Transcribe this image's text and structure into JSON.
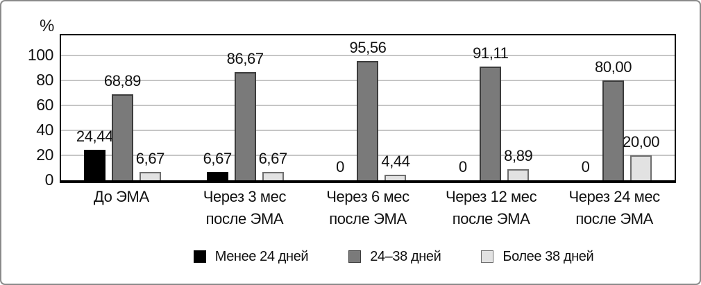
{
  "chart_data": {
    "type": "bar",
    "title": "",
    "xlabel": "",
    "ylabel": "%",
    "ylim": [
      0,
      116
    ],
    "yticks": [
      0,
      20,
      40,
      60,
      80,
      100
    ],
    "grid": true,
    "legend_position": "bottom",
    "categories": [
      "До ЭМА",
      "Через 3 мес после ЭМА",
      "Через 6 мес после ЭМА",
      "Через 12 мес после ЭМА",
      "Через 24 мес после ЭМА"
    ],
    "category_lines": [
      [
        "До ЭМА"
      ],
      [
        "Через 3 мес",
        "после ЭМА"
      ],
      [
        "Через 6 мес",
        "после ЭМА"
      ],
      [
        "Через 12 мес",
        "после ЭМА"
      ],
      [
        "Через 24 мес",
        "после ЭМА"
      ]
    ],
    "series": [
      {
        "name": "Менее 24 дней",
        "color": "#000000",
        "border_color": "#000000",
        "values": [
          24.44,
          6.67,
          0,
          0,
          0
        ],
        "value_labels": [
          "24,44",
          "6,67",
          "0",
          "0",
          "0"
        ]
      },
      {
        "name": "24–38 дней",
        "color": "#7a7a7a",
        "border_color": "#3c3c3c",
        "values": [
          68.89,
          86.67,
          95.56,
          91.11,
          80.0
        ],
        "value_labels": [
          "68,89",
          "86,67",
          "95,56",
          "91,11",
          "80,00"
        ]
      },
      {
        "name": "Более 38 дней",
        "color": "#e2e2e2",
        "border_color": "#6e6e6e",
        "values": [
          6.67,
          6.67,
          4.44,
          8.89,
          20.0
        ],
        "value_labels": [
          "6,67",
          "6,67",
          "4,44",
          "8,89",
          "20,00"
        ]
      }
    ],
    "colors": {
      "gridline": "#c6c6c6",
      "axis": "#000000",
      "outer_frame": "#8a8a8a",
      "text": "#111111"
    }
  }
}
